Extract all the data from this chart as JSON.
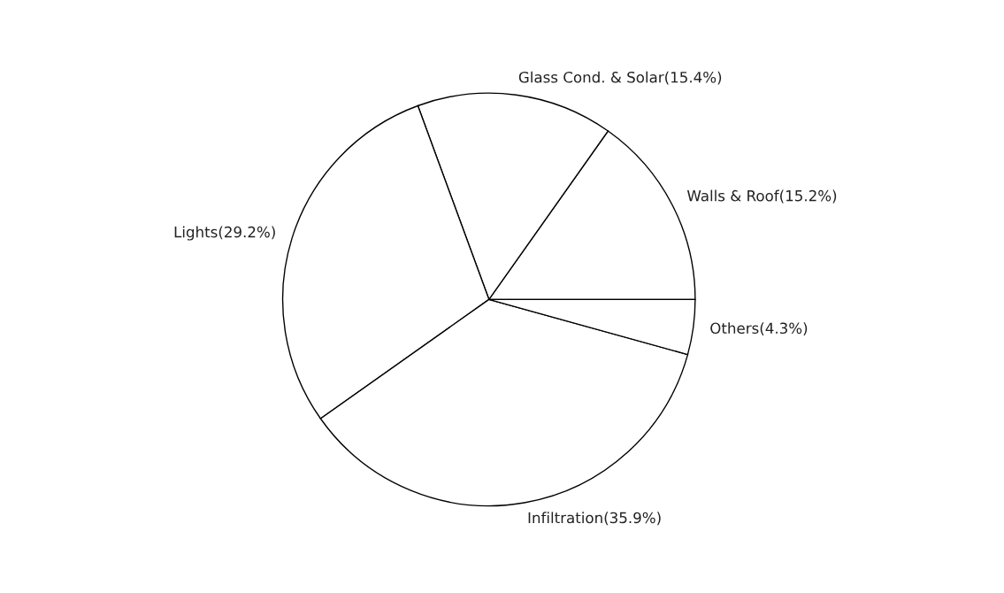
{
  "chart_data": {
    "type": "pie",
    "categories": [
      "Walls & Roof(15.2%)",
      "Glass Cond. & Solar(15.4%)",
      "Lights(29.2%)",
      "Infiltration(35.9%)",
      "Others(4.3%)"
    ],
    "values": [
      15.2,
      15.4,
      29.2,
      35.9,
      4.3
    ],
    "colors": [
      "#ffffff",
      "#ffffff",
      "#ffffff",
      "#ffffff",
      "#ffffff"
    ],
    "legend": false
  }
}
